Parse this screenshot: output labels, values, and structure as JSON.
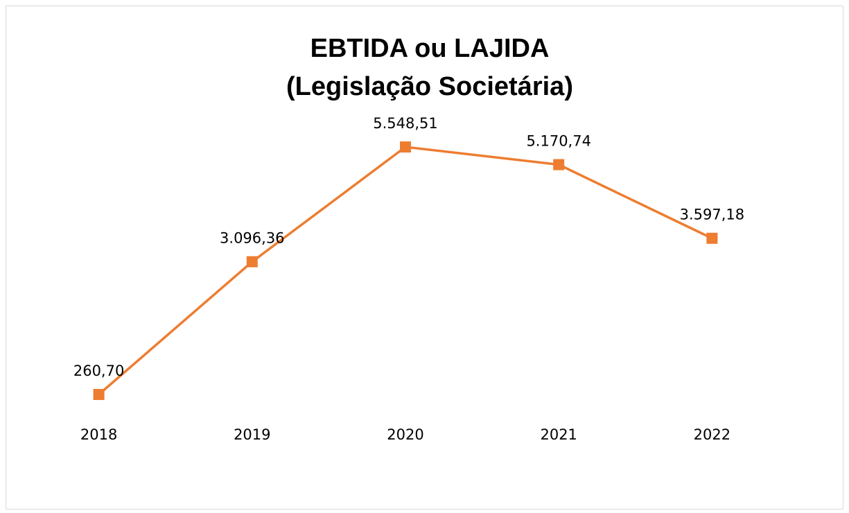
{
  "chart_data": {
    "type": "line",
    "title": [
      "EBTIDA ou LAJIDA",
      "(Legislação Societária)"
    ],
    "categories": [
      "2018",
      "2019",
      "2020",
      "2021",
      "2022"
    ],
    "values": [
      260.7,
      3096.36,
      5548.51,
      5170.74,
      3597.18
    ],
    "value_labels": [
      "260,70",
      "3.096,36",
      "5.548,51",
      "5.170,74",
      "3.597,18"
    ],
    "color": "#ED7D31"
  }
}
